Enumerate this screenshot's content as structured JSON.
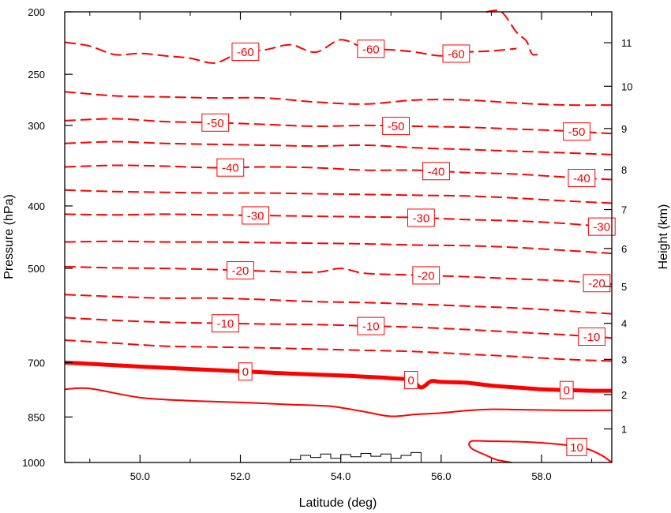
{
  "chart_data": {
    "type": "contour",
    "xlabel": "Latitude (deg)",
    "ylabel": "Pressure (hPa)",
    "y2label": "Height (km)",
    "xlim": [
      48.5,
      59.4
    ],
    "ylim": [
      1000,
      200
    ],
    "y_scale": "log",
    "x_ticks": [
      "50.0",
      "52.0",
      "54.0",
      "56.0",
      "58.0"
    ],
    "y_ticks": [
      "200",
      "250",
      "300",
      "400",
      "500",
      "700",
      "850",
      "1000"
    ],
    "y2_ticks": [
      "1",
      "2",
      "3",
      "4",
      "5",
      "6",
      "7",
      "8",
      "9",
      "10",
      "11"
    ],
    "line_color": "#ff0000",
    "terrain_color": "#000000",
    "contours": [
      {
        "level": -60,
        "style": "dashed",
        "x": [
          48.5,
          49.0,
          49.5,
          50.0,
          50.5,
          51.0,
          51.5,
          52.0,
          52.5,
          53.0,
          53.5,
          54.0,
          54.5,
          55.0,
          55.5,
          56.0,
          56.5,
          57.0,
          57.5
        ],
        "p": [
          223,
          226,
          233,
          232,
          234,
          236,
          240,
          231,
          229,
          225,
          231,
          221,
          228,
          229,
          231,
          234,
          231,
          230,
          228
        ],
        "labels": [
          {
            "x": 52.1,
            "text": "-60"
          },
          {
            "x": 54.6,
            "text": "-60"
          },
          {
            "x": 56.3,
            "text": "-60"
          }
        ]
      },
      {
        "level": -60,
        "style": "dashed",
        "x": [
          56.9,
          57.2,
          57.5,
          57.7,
          57.8,
          57.9,
          58.0
        ],
        "p": [
          200,
          200,
          215,
          222,
          232,
          233,
          231
        ]
      },
      {
        "level": -55,
        "style": "dashed",
        "x": [
          48.5,
          49.5,
          50.5,
          51.5,
          52.5,
          53.5,
          54.5,
          55.5,
          56.5,
          57.5,
          58.5,
          59.4
        ],
        "p": [
          266,
          270,
          271,
          272,
          272,
          276,
          278,
          274,
          274,
          277,
          279,
          279
        ]
      },
      {
        "level": -50,
        "style": "dashed",
        "x": [
          48.5,
          49.5,
          50.5,
          51.5,
          52.5,
          53.5,
          54.5,
          55.5,
          56.5,
          57.5,
          58.5,
          59.4
        ],
        "p": [
          295,
          293,
          296,
          297,
          299,
          301,
          300,
          301,
          302,
          304,
          306,
          309
        ],
        "labels": [
          {
            "x": 51.5,
            "text": "-50"
          },
          {
            "x": 55.1,
            "text": "-50"
          },
          {
            "x": 58.7,
            "text": "-50"
          }
        ]
      },
      {
        "level": -45,
        "style": "dashed",
        "x": [
          48.5,
          49.5,
          50.5,
          51.5,
          52.5,
          53.5,
          54.5,
          55.5,
          56.5,
          57.5,
          58.5,
          59.4
        ],
        "p": [
          320,
          318,
          320,
          321,
          322,
          323,
          322,
          325,
          327,
          329,
          331,
          333
        ]
      },
      {
        "level": -40,
        "style": "dashed",
        "x": [
          48.5,
          49.5,
          50.5,
          51.5,
          52.5,
          53.5,
          54.5,
          55.5,
          56.5,
          57.5,
          58.5,
          59.4
        ],
        "p": [
          348,
          346,
          347,
          349,
          348,
          349,
          352,
          352,
          355,
          357,
          361,
          364
        ],
        "labels": [
          {
            "x": 51.8,
            "text": "-40"
          },
          {
            "x": 55.9,
            "text": "-40"
          },
          {
            "x": 58.8,
            "text": "-40"
          }
        ]
      },
      {
        "level": -35,
        "style": "dashed",
        "x": [
          48.5,
          49.5,
          50.5,
          51.5,
          52.5,
          53.5,
          54.5,
          55.5,
          56.5,
          57.5,
          58.5,
          59.4
        ],
        "p": [
          378,
          380,
          381,
          382,
          382,
          383,
          384,
          385,
          386,
          389,
          393,
          396
        ]
      },
      {
        "level": -30,
        "style": "dashed",
        "x": [
          48.5,
          49.5,
          50.5,
          51.5,
          52.5,
          53.5,
          54.5,
          55.5,
          56.5,
          57.5,
          58.5,
          59.4
        ],
        "p": [
          412,
          413,
          412,
          413,
          414,
          415,
          416,
          417,
          420,
          422,
          426,
          432
        ],
        "labels": [
          {
            "x": 52.3,
            "text": "-30"
          },
          {
            "x": 55.6,
            "text": "-30"
          },
          {
            "x": 59.2,
            "text": "-30"
          }
        ]
      },
      {
        "level": -25,
        "style": "dashed",
        "x": [
          48.5,
          49.5,
          50.5,
          51.5,
          52.5,
          53.5,
          54.5,
          55.5,
          56.5,
          57.5,
          58.5,
          59.4
        ],
        "p": [
          455,
          454,
          455,
          455,
          456,
          457,
          458,
          460,
          461,
          464,
          469,
          474
        ]
      },
      {
        "level": -20,
        "style": "dashed",
        "x": [
          48.5,
          49.5,
          50.5,
          51.5,
          52.5,
          53.5,
          54.0,
          54.5,
          55.5,
          56.5,
          57.5,
          58.5,
          59.4
        ],
        "p": [
          497,
          499,
          500,
          502,
          505,
          507,
          500,
          509,
          512,
          515,
          519,
          523,
          529
        ],
        "labels": [
          {
            "x": 52.0,
            "text": "-20"
          },
          {
            "x": 55.7,
            "text": "-20"
          },
          {
            "x": 59.1,
            "text": "-20"
          }
        ]
      },
      {
        "level": -15,
        "style": "dashed",
        "x": [
          48.5,
          49.5,
          50.5,
          51.5,
          52.5,
          53.5,
          54.5,
          55.5,
          56.5,
          57.5,
          58.5,
          59.4
        ],
        "p": [
          549,
          553,
          556,
          556,
          559,
          563,
          565,
          568,
          572,
          576,
          582,
          588
        ]
      },
      {
        "level": -10,
        "style": "dashed",
        "x": [
          48.5,
          49.5,
          50.5,
          51.5,
          52.5,
          53.5,
          54.5,
          55.5,
          56.5,
          57.5,
          58.5,
          59.4
        ],
        "p": [
          596,
          602,
          606,
          608,
          610,
          611,
          614,
          617,
          622,
          628,
          634,
          641
        ],
        "labels": [
          {
            "x": 51.7,
            "text": "-10"
          },
          {
            "x": 54.6,
            "text": "-10"
          },
          {
            "x": 59.0,
            "text": "-10"
          }
        ]
      },
      {
        "level": -5,
        "style": "dashed",
        "x": [
          48.5,
          49.5,
          50.5,
          51.5,
          52.5,
          53.5,
          54.5,
          55.5,
          56.5,
          57.5,
          58.5,
          59.4
        ],
        "p": [
          646,
          653,
          660,
          662,
          664,
          667,
          670,
          673,
          679,
          685,
          692,
          696
        ]
      },
      {
        "level": 0,
        "style": "thick",
        "x": [
          48.5,
          49.0,
          50.0,
          51.0,
          52.0,
          53.0,
          54.0,
          55.0,
          55.4,
          55.6,
          55.8,
          56.0,
          56.5,
          57.0,
          57.5,
          58.0,
          58.5,
          59.0,
          59.4
        ],
        "p": [
          700,
          703,
          710,
          716,
          722,
          728,
          733,
          740,
          745,
          765,
          748,
          750,
          752,
          760,
          765,
          770,
          772,
          774,
          774
        ],
        "labels": [
          {
            "x": 52.1,
            "text": "0"
          },
          {
            "x": 55.4,
            "text": "0"
          },
          {
            "x": 58.5,
            "text": "0"
          }
        ]
      },
      {
        "level": 5,
        "style": "solid",
        "x": [
          48.5,
          49.0,
          50.0,
          51.0,
          52.0,
          53.0,
          53.7,
          54.0,
          54.5,
          55.0,
          55.5,
          56.0,
          56.5,
          57.0,
          57.5,
          58.0,
          58.5,
          59.4
        ],
        "p": [
          770,
          768,
          793,
          802,
          807,
          813,
          817,
          822,
          835,
          848,
          842,
          838,
          831,
          827,
          828,
          829,
          830,
          830
        ]
      },
      {
        "level": 10,
        "style": "solid",
        "x": [
          59.4,
          59.2,
          58.9,
          58.5,
          58.0,
          57.5,
          57.0,
          56.6,
          56.6,
          56.9,
          57.1,
          57.4
        ],
        "p": [
          1000,
          975,
          952,
          940,
          932,
          928,
          927,
          927,
          950,
          975,
          990,
          1000
        ],
        "labels": [
          {
            "x": 58.7,
            "text": "10"
          }
        ]
      }
    ]
  }
}
